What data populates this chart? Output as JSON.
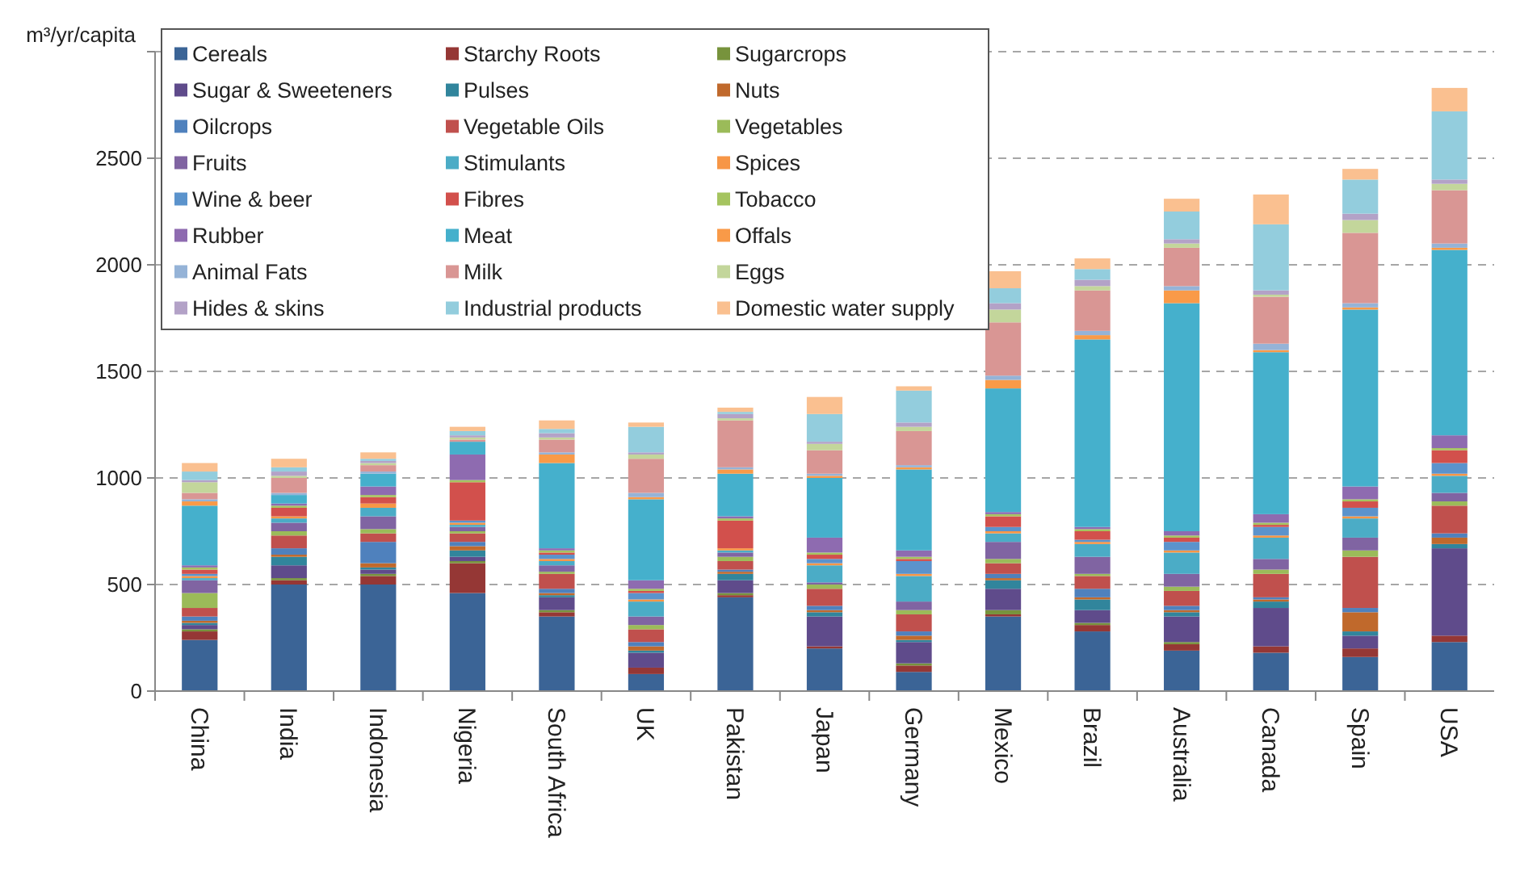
{
  "chart_data": {
    "type": "bar",
    "stacked": true,
    "ylabel": "m³/yr/capita",
    "ylim": [
      0,
      3000
    ],
    "yticks": [
      0,
      500,
      1000,
      1500,
      2000,
      2500,
      {
        "value": 3000,
        "label": null
      }
    ],
    "grid": "y",
    "legend": "top left",
    "categories": [
      "China",
      "India",
      "Indonesia",
      "Nigeria",
      "South Africa",
      "UK",
      "Pakistan",
      "Japan",
      "Germany",
      "Mexico",
      "Brazil",
      "Australia",
      "Canada",
      "Spain",
      "USA"
    ],
    "series": [
      {
        "name": "Cereals",
        "color": "#3b6496",
        "values": [
          240,
          500,
          500,
          460,
          350,
          80,
          440,
          200,
          90,
          350,
          280,
          190,
          180,
          160,
          230
        ]
      },
      {
        "name": "Starchy Roots",
        "color": "#953735",
        "values": [
          40,
          20,
          40,
          140,
          20,
          30,
          10,
          10,
          30,
          10,
          30,
          30,
          30,
          40,
          30
        ]
      },
      {
        "name": "Sugarcrops",
        "color": "#77933c",
        "values": [
          10,
          10,
          10,
          10,
          10,
          0,
          10,
          0,
          10,
          20,
          10,
          10,
          0,
          0,
          0
        ]
      },
      {
        "name": "Sugar & Sweeteners",
        "color": "#5f4b8b",
        "values": [
          20,
          60,
          20,
          20,
          60,
          70,
          60,
          140,
          100,
          100,
          60,
          120,
          180,
          60,
          410
        ]
      },
      {
        "name": "Pulses",
        "color": "#31859c",
        "values": [
          10,
          40,
          10,
          30,
          10,
          10,
          30,
          20,
          10,
          40,
          50,
          20,
          30,
          20,
          20
        ]
      },
      {
        "name": "Nuts",
        "color": "#c0692c",
        "values": [
          10,
          10,
          20,
          20,
          10,
          20,
          10,
          10,
          20,
          10,
          10,
          10,
          10,
          90,
          30
        ]
      },
      {
        "name": "Oilcrops",
        "color": "#4f81bd",
        "values": [
          20,
          30,
          100,
          20,
          20,
          20,
          10,
          20,
          20,
          20,
          40,
          20,
          10,
          20,
          20
        ]
      },
      {
        "name": "Vegetable Oils",
        "color": "#c0504d",
        "values": [
          40,
          60,
          40,
          40,
          70,
          60,
          40,
          80,
          80,
          50,
          60,
          70,
          110,
          240,
          130
        ]
      },
      {
        "name": "Vegetables",
        "color": "#9bbb59",
        "values": [
          70,
          20,
          20,
          10,
          10,
          20,
          20,
          20,
          20,
          20,
          10,
          20,
          20,
          30,
          20
        ]
      },
      {
        "name": "Fruits",
        "color": "#8064a2",
        "values": [
          60,
          40,
          60,
          20,
          30,
          40,
          20,
          10,
          40,
          80,
          80,
          60,
          50,
          60,
          40
        ]
      },
      {
        "name": "Stimulants",
        "color": "#4bacc6",
        "values": [
          10,
          20,
          40,
          10,
          20,
          70,
          10,
          80,
          120,
          40,
          60,
          100,
          100,
          90,
          80
        ]
      },
      {
        "name": "Spices",
        "color": "#f79646",
        "values": [
          10,
          10,
          20,
          10,
          10,
          10,
          10,
          10,
          10,
          10,
          10,
          10,
          10,
          10,
          10
        ]
      },
      {
        "name": "Wine & beer",
        "color": "#5b93cc",
        "values": [
          10,
          0,
          0,
          10,
          20,
          30,
          0,
          20,
          60,
          20,
          10,
          40,
          40,
          40,
          50
        ]
      },
      {
        "name": "Fibres",
        "color": "#d2504c",
        "values": [
          20,
          40,
          30,
          180,
          10,
          10,
          130,
          20,
          10,
          50,
          40,
          20,
          10,
          30,
          60
        ]
      },
      {
        "name": "Tobacco",
        "color": "#a5c45f",
        "values": [
          10,
          10,
          10,
          10,
          10,
          10,
          10,
          10,
          10,
          10,
          10,
          10,
          10,
          10,
          10
        ]
      },
      {
        "name": "Rubber",
        "color": "#8e6bb0",
        "values": [
          10,
          10,
          40,
          120,
          10,
          40,
          10,
          70,
          30,
          10,
          10,
          20,
          40,
          60,
          60
        ]
      },
      {
        "name": "Meat",
        "color": "#45b0cc",
        "values": [
          280,
          40,
          60,
          60,
          400,
          380,
          200,
          280,
          380,
          580,
          880,
          1070,
          760,
          830,
          870
        ]
      },
      {
        "name": "Offals",
        "color": "#f99a48",
        "values": [
          20,
          0,
          0,
          0,
          40,
          10,
          20,
          10,
          10,
          40,
          20,
          60,
          10,
          10,
          10
        ]
      },
      {
        "name": "Animal Fats",
        "color": "#95b3d7",
        "values": [
          10,
          10,
          10,
          0,
          10,
          20,
          10,
          10,
          10,
          20,
          20,
          20,
          30,
          20,
          20
        ]
      },
      {
        "name": "Milk",
        "color": "#d99694",
        "values": [
          30,
          70,
          30,
          10,
          60,
          160,
          220,
          110,
          160,
          250,
          190,
          180,
          220,
          330,
          250
        ]
      },
      {
        "name": "Eggs",
        "color": "#c3d69b",
        "values": [
          50,
          10,
          10,
          10,
          10,
          20,
          10,
          30,
          20,
          60,
          20,
          20,
          10,
          60,
          30
        ]
      },
      {
        "name": "Hides & skins",
        "color": "#b3a2c7",
        "values": [
          10,
          20,
          10,
          10,
          20,
          10,
          20,
          10,
          20,
          30,
          30,
          20,
          20,
          30,
          20
        ]
      },
      {
        "name": "Industrial products",
        "color": "#93cddd",
        "values": [
          40,
          20,
          10,
          20,
          20,
          120,
          10,
          130,
          150,
          70,
          50,
          130,
          310,
          160,
          320
        ]
      },
      {
        "name": "Domestic water supply",
        "color": "#fac090",
        "values": [
          40,
          40,
          30,
          20,
          40,
          20,
          20,
          80,
          20,
          80,
          50,
          60,
          140,
          50,
          110
        ]
      }
    ]
  }
}
